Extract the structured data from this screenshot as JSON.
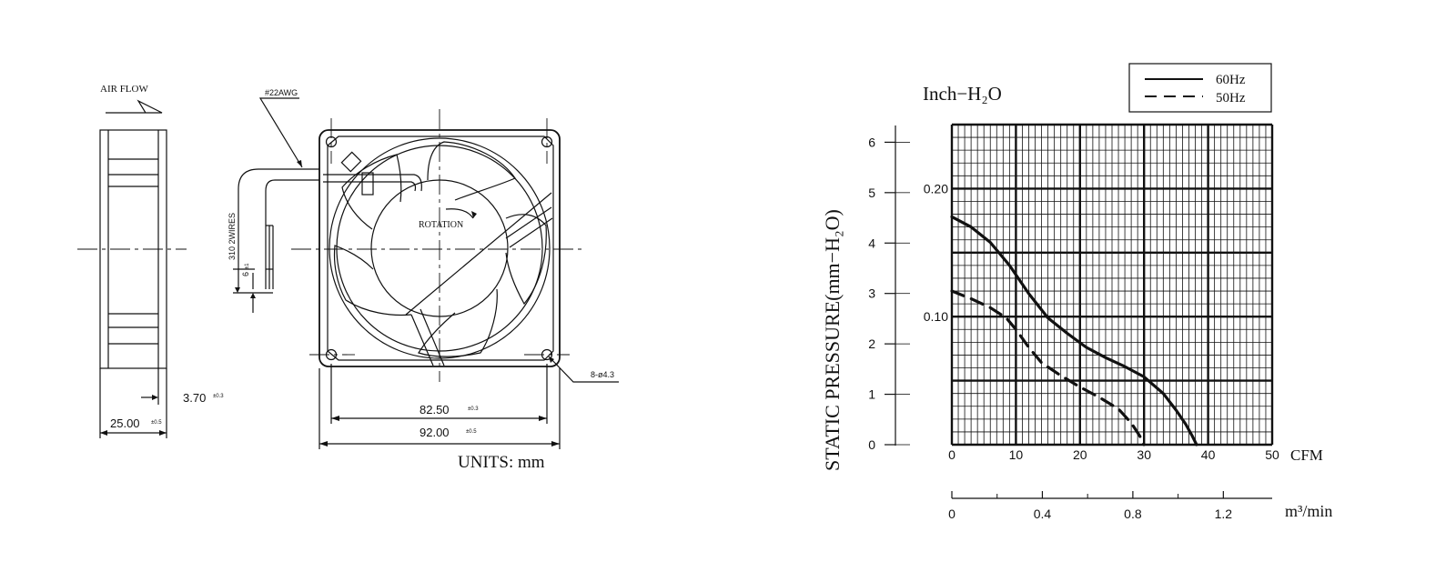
{
  "mech": {
    "airflow": "AIR FLOW",
    "wire_gauge": "#22AWG",
    "wires": "310  2WIRES",
    "strip": "6",
    "strip_tol": "±1",
    "rotation": "ROTATION",
    "hole_spec": "8-ø4.3",
    "dim_offset": "3.70",
    "dim_offset_tol": "±0.3",
    "dim_depth": "25.00",
    "dim_depth_tol": "±0.5",
    "dim_hole": "82.50",
    "dim_hole_tol": "±0.3",
    "dim_size": "92.00",
    "dim_size_tol": "±0.5",
    "units": "UNITS: mm"
  },
  "chart_data": {
    "type": "line",
    "left_unit_label": "Inch−H₂O",
    "ylabel": "STATIC PRESSURE(mm−H₂O)",
    "mm_ticks": [
      "0",
      "1",
      "2",
      "3",
      "4",
      "5",
      "6"
    ],
    "inch_ticks": [
      "0.10",
      "0.20"
    ],
    "inch_tick_values": [
      0.1,
      0.2
    ],
    "x_ticks_cfm": [
      "0",
      "10",
      "20",
      "30",
      "40",
      "50"
    ],
    "x_unit_cfm": "CFM",
    "x_ticks_m3": [
      "0",
      "0.4",
      "0.8",
      "1.2"
    ],
    "x_unit_m3": "m³/min",
    "xlim_cfm": [
      0,
      50
    ],
    "ylim_inch": [
      0,
      0.25
    ],
    "legend_position": "top-right",
    "series": [
      {
        "name": "60Hz",
        "style": "solid",
        "x": [
          0,
          3,
          6,
          9,
          12,
          15,
          18,
          21,
          24,
          27,
          30,
          33,
          35,
          36.5,
          37.5,
          38.2
        ],
        "y": [
          0.178,
          0.17,
          0.158,
          0.14,
          0.118,
          0.099,
          0.087,
          0.076,
          0.068,
          0.061,
          0.053,
          0.04,
          0.027,
          0.016,
          0.007,
          0.0
        ]
      },
      {
        "name": "50Hz",
        "style": "dashed",
        "x": [
          0,
          3,
          6,
          8.5,
          10,
          12,
          14,
          17,
          20,
          23,
          26,
          28,
          29.3,
          30
        ],
        "y": [
          0.12,
          0.114,
          0.107,
          0.099,
          0.09,
          0.076,
          0.064,
          0.054,
          0.045,
          0.037,
          0.028,
          0.017,
          0.007,
          0.0
        ]
      }
    ]
  }
}
